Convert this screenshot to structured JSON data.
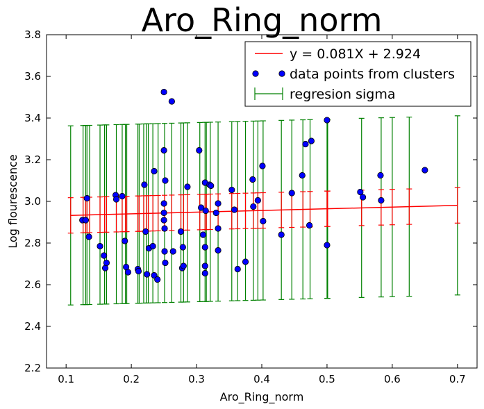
{
  "chart_data": {
    "type": "scatter",
    "title": "Aro_Ring_norm",
    "xlabel": "Aro_Ring_norm",
    "ylabel": "Log flourescence",
    "xlim": [
      0.07,
      0.73
    ],
    "ylim": [
      2.2,
      3.8
    ],
    "xticks": [
      0.1,
      0.2,
      0.3,
      0.4,
      0.5,
      0.6,
      0.7
    ],
    "xtick_labels": [
      "0.1",
      "0.2",
      "0.3",
      "0.4",
      "0.5",
      "0.6",
      "0.7"
    ],
    "yticks": [
      2.2,
      2.4,
      2.6,
      2.8,
      3.0,
      3.2,
      3.4,
      3.6,
      3.8
    ],
    "ytick_labels": [
      "2.2",
      "2.4",
      "2.6",
      "2.8",
      "3.0",
      "3.2",
      "3.4",
      "3.6",
      "3.8"
    ],
    "regression": {
      "slope": 0.081,
      "intercept": 2.924,
      "x_start": 0.107,
      "x_end": 0.7,
      "color": "#ff0000"
    },
    "legend": {
      "location": "upper right",
      "entries": [
        {
          "label": "y = 0.081X + 2.924",
          "kind": "line",
          "color": "#ff0000"
        },
        {
          "label": "data points from clusters",
          "kind": "marker",
          "color": "#0000ff"
        },
        {
          "label": "regresion sigma",
          "kind": "errorbar",
          "color": "#008000"
        }
      ]
    },
    "series": [
      {
        "name": "data points from clusters",
        "color": "#0000ff",
        "x": [
          0.125,
          0.13,
          0.13,
          0.132,
          0.135,
          0.152,
          0.158,
          0.16,
          0.162,
          0.176,
          0.177,
          0.186,
          0.19,
          0.192,
          0.195,
          0.21,
          0.211,
          0.22,
          0.222,
          0.224,
          0.227,
          0.233,
          0.235,
          0.235,
          0.24,
          0.25,
          0.25,
          0.25,
          0.25,
          0.25,
          0.251,
          0.251,
          0.252,
          0.252,
          0.262,
          0.264,
          0.276,
          0.278,
          0.279,
          0.28,
          0.286,
          0.304,
          0.307,
          0.31,
          0.313,
          0.313,
          0.313,
          0.313,
          0.314,
          0.32,
          0.322,
          0.33,
          0.333,
          0.333,
          0.333,
          0.354,
          0.358,
          0.363,
          0.375,
          0.386,
          0.387,
          0.394,
          0.401,
          0.402,
          0.43,
          0.446,
          0.462,
          0.467,
          0.473,
          0.476,
          0.5,
          0.5,
          0.551,
          0.555,
          0.582,
          0.583,
          0.65
        ],
        "y": [
          2.91,
          2.91,
          2.91,
          3.015,
          2.83,
          2.785,
          2.74,
          2.68,
          2.705,
          3.03,
          3.01,
          3.025,
          2.81,
          2.685,
          2.66,
          2.675,
          2.665,
          3.08,
          2.855,
          2.65,
          2.775,
          2.785,
          3.145,
          2.645,
          2.625,
          3.525,
          3.245,
          2.99,
          2.945,
          2.91,
          2.87,
          2.76,
          2.705,
          3.1,
          3.48,
          2.76,
          2.855,
          2.68,
          2.78,
          2.69,
          3.07,
          3.245,
          2.97,
          2.84,
          3.09,
          2.78,
          2.69,
          2.655,
          2.955,
          3.08,
          3.075,
          2.945,
          2.99,
          2.87,
          2.765,
          3.055,
          2.96,
          2.675,
          2.71,
          3.105,
          2.975,
          3.005,
          3.17,
          2.905,
          2.84,
          3.04,
          3.125,
          3.275,
          2.885,
          3.29,
          3.39,
          2.79,
          3.045,
          3.02,
          3.125,
          3.005,
          3.15
        ]
      }
    ],
    "error_bars": {
      "name": "regresion sigma",
      "color_outer": "#008000",
      "color_inner": "#ff0000",
      "inner_sigma": 0.085,
      "x": [
        0.107,
        0.126,
        0.13,
        0.132,
        0.136,
        0.152,
        0.159,
        0.162,
        0.177,
        0.186,
        0.191,
        0.193,
        0.21,
        0.212,
        0.219,
        0.223,
        0.226,
        0.233,
        0.241,
        0.251,
        0.262,
        0.276,
        0.28,
        0.286,
        0.305,
        0.313,
        0.315,
        0.321,
        0.333,
        0.354,
        0.363,
        0.375,
        0.387,
        0.394,
        0.402,
        0.43,
        0.446,
        0.463,
        0.474,
        0.5,
        0.501,
        0.553,
        0.583,
        0.6,
        0.626,
        0.7
      ],
      "sigma": [
        0.43,
        0.43,
        0.43,
        0.43,
        0.43,
        0.43,
        0.43,
        0.43,
        0.43,
        0.43,
        0.43,
        0.43,
        0.43,
        0.43,
        0.43,
        0.43,
        0.43,
        0.43,
        0.43,
        0.43,
        0.43,
        0.43,
        0.43,
        0.43,
        0.43,
        0.43,
        0.43,
        0.43,
        0.43,
        0.43,
        0.43,
        0.43,
        0.43,
        0.43,
        0.43,
        0.43,
        0.43,
        0.43,
        0.43,
        0.43,
        0.43,
        0.43,
        0.43,
        0.43,
        0.43,
        0.43
      ]
    }
  }
}
